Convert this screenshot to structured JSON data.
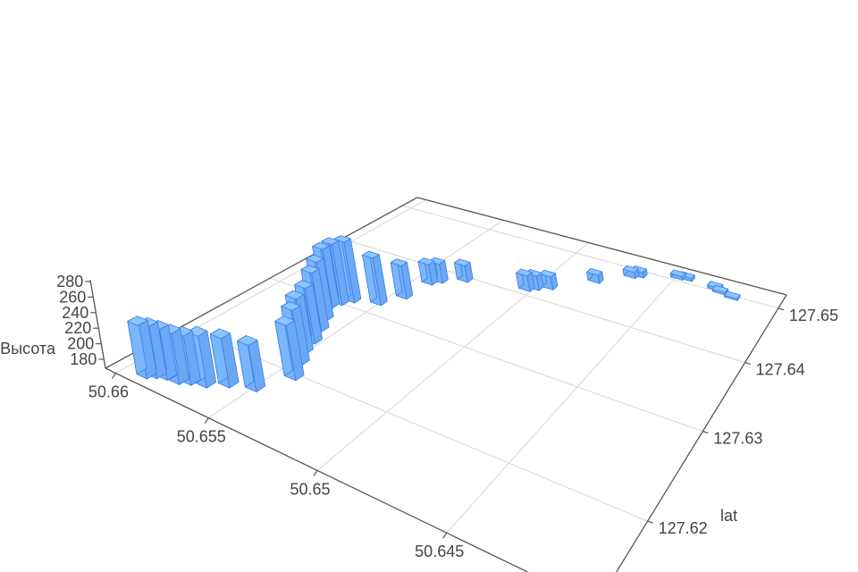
{
  "chart_data": {
    "type": "bar3d",
    "color": "#7fb8ff",
    "edge_color": "#3d7de0",
    "grid": true,
    "axes": {
      "x": {
        "label": "",
        "range": [
          50.6402,
          50.6606
        ],
        "ticks": [
          50.66,
          50.655,
          50.65,
          50.645
        ],
        "tick_labels": [
          "50.66",
          "50.655",
          "50.65",
          "50.645"
        ]
      },
      "y": {
        "label": "lat",
        "range": [
          127.6128,
          127.6528
        ],
        "ticks": [
          127.62,
          127.63,
          127.64,
          127.65
        ],
        "tick_labels": [
          "127.62",
          "127.63",
          "127.64",
          "127.65"
        ]
      },
      "z": {
        "label": "Высота",
        "range": [
          168.5,
          282
        ],
        "ticks": [
          180,
          200,
          220,
          240,
          260,
          280
        ],
        "tick_labels": [
          "180",
          "200",
          "220",
          "240",
          "260",
          "280"
        ]
      }
    },
    "bars": [
      {
        "x": 50.659,
        "y": 127.614,
        "z": 236
      },
      {
        "x": 50.6587,
        "y": 127.6144,
        "z": 234
      },
      {
        "x": 50.6583,
        "y": 127.6147,
        "z": 232
      },
      {
        "x": 50.6577,
        "y": 127.6148,
        "z": 232
      },
      {
        "x": 50.6573,
        "y": 127.6152,
        "z": 230
      },
      {
        "x": 50.6567,
        "y": 127.6156,
        "z": 233
      },
      {
        "x": 50.656,
        "y": 127.6165,
        "z": 230
      },
      {
        "x": 50.655,
        "y": 127.6172,
        "z": 226
      },
      {
        "x": 50.6543,
        "y": 127.6198,
        "z": 238
      },
      {
        "x": 50.6548,
        "y": 127.6215,
        "z": 240
      },
      {
        "x": 50.6552,
        "y": 127.6228,
        "z": 242
      },
      {
        "x": 50.6554,
        "y": 127.6243,
        "z": 244
      },
      {
        "x": 50.6558,
        "y": 127.626,
        "z": 250
      },
      {
        "x": 50.6562,
        "y": 127.6275,
        "z": 252
      },
      {
        "x": 50.6567,
        "y": 127.6294,
        "z": 254
      },
      {
        "x": 50.6565,
        "y": 127.6302,
        "z": 258
      },
      {
        "x": 50.6562,
        "y": 127.6311,
        "z": 258
      },
      {
        "x": 50.6551,
        "y": 127.632,
        "z": 238
      },
      {
        "x": 50.6545,
        "y": 127.6341,
        "z": 218
      },
      {
        "x": 50.6543,
        "y": 127.6374,
        "z": 200
      },
      {
        "x": 50.654,
        "y": 127.6382,
        "z": 198
      },
      {
        "x": 50.6531,
        "y": 127.6396,
        "z": 194
      },
      {
        "x": 50.6503,
        "y": 127.6412,
        "z": 192
      },
      {
        "x": 50.65,
        "y": 127.6418,
        "z": 190
      },
      {
        "x": 50.6495,
        "y": 127.6426,
        "z": 188
      },
      {
        "x": 50.648,
        "y": 127.646,
        "z": 181
      },
      {
        "x": 50.6468,
        "y": 127.6487,
        "z": 178
      },
      {
        "x": 50.6465,
        "y": 127.6492,
        "z": 177
      },
      {
        "x": 50.6449,
        "y": 127.6508,
        "z": 174
      },
      {
        "x": 50.6445,
        "y": 127.651,
        "z": 173
      },
      {
        "x": 50.6431,
        "y": 127.6506,
        "z": 173
      },
      {
        "x": 50.6428,
        "y": 127.6502,
        "z": 172
      },
      {
        "x": 50.6422,
        "y": 127.6498,
        "z": 171
      }
    ]
  }
}
